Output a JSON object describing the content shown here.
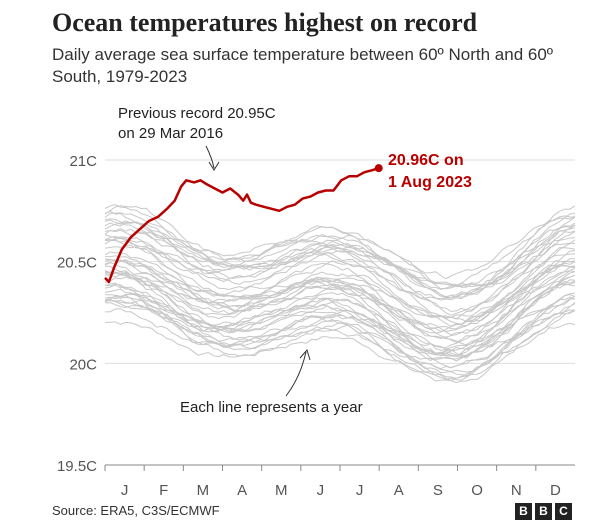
{
  "header": {
    "title": "Ocean temperatures highest on record",
    "subtitle": "Daily average sea surface temperature between 60º North and 60º South, 1979-2023"
  },
  "footer": {
    "source": "Source: ERA5, C3S/ECMWF",
    "logo_letters": [
      "B",
      "B",
      "C"
    ]
  },
  "chart_data": {
    "type": "line",
    "title": "Ocean temperatures highest on record",
    "subtitle": "Daily average sea surface temperature between 60º North and 60º South, 1979-2023",
    "x_tick_labels": [
      "J",
      "F",
      "M",
      "A",
      "M",
      "J",
      "J",
      "A",
      "S",
      "O",
      "N",
      "D"
    ],
    "y_ticks": [
      {
        "value": 19.5,
        "label": "19.5C"
      },
      {
        "value": 20.0,
        "label": "20C"
      },
      {
        "value": 20.5,
        "label": "20.5C"
      },
      {
        "value": 21.0,
        "label": "21C"
      }
    ],
    "ylim": [
      19.5,
      21.0
    ],
    "xlim_day_of_year": [
      1,
      365
    ],
    "grid": "horizontal",
    "colors": {
      "highlight": "#b80000",
      "background_lines": "#c8c8c8",
      "grid": "#dddddd"
    },
    "highlight_series": {
      "name": "2023",
      "points": [
        [
          1,
          20.42
        ],
        [
          4,
          20.4
        ],
        [
          8,
          20.47
        ],
        [
          14,
          20.56
        ],
        [
          21,
          20.62
        ],
        [
          28,
          20.66
        ],
        [
          35,
          20.7
        ],
        [
          42,
          20.72
        ],
        [
          49,
          20.76
        ],
        [
          55,
          20.8
        ],
        [
          60,
          20.87
        ],
        [
          64,
          20.9
        ],
        [
          70,
          20.89
        ],
        [
          75,
          20.9
        ],
        [
          80,
          20.88
        ],
        [
          86,
          20.86
        ],
        [
          92,
          20.84
        ],
        [
          98,
          20.86
        ],
        [
          104,
          20.83
        ],
        [
          108,
          20.8
        ],
        [
          111,
          20.83
        ],
        [
          114,
          20.79
        ],
        [
          118,
          20.78
        ],
        [
          124,
          20.77
        ],
        [
          130,
          20.76
        ],
        [
          136,
          20.75
        ],
        [
          142,
          20.77
        ],
        [
          148,
          20.78
        ],
        [
          154,
          20.81
        ],
        [
          160,
          20.82
        ],
        [
          166,
          20.84
        ],
        [
          172,
          20.85
        ],
        [
          178,
          20.85
        ],
        [
          184,
          20.9
        ],
        [
          190,
          20.92
        ],
        [
          196,
          20.92
        ],
        [
          202,
          20.94
        ],
        [
          208,
          20.95
        ],
        [
          213,
          20.96
        ]
      ]
    },
    "background_series_description_count": 44,
    "annotations": [
      {
        "text_lines": [
          "Previous record 20.95C",
          "on 29 Mar 2016"
        ],
        "points_to": {
          "x_day": 88,
          "y": 20.95
        }
      },
      {
        "text_lines": [
          "20.96C on",
          "1 Aug 2023"
        ],
        "points_to": {
          "x_day": 213,
          "y": 20.96
        },
        "color": "#b80000"
      },
      {
        "text": "Each line represents a year",
        "points_to": {
          "x_day": 150,
          "y": 20.07
        }
      }
    ]
  }
}
